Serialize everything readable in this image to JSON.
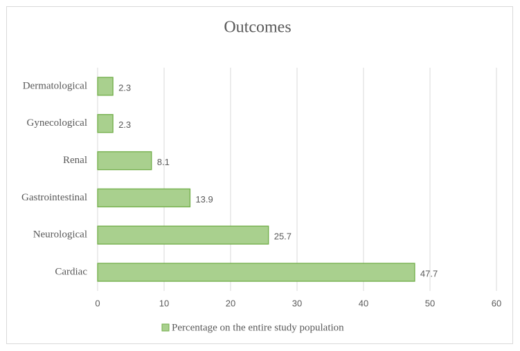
{
  "chart_data": {
    "type": "bar",
    "orientation": "horizontal",
    "title": "Outcomes",
    "categories": [
      "Cardiac",
      "Neurological",
      "Gastrointestinal",
      "Renal",
      "Gynecological",
      "Dermatological"
    ],
    "series": [
      {
        "name": "Percentage on the entire study population",
        "color": "#a9d08e",
        "values": [
          47.7,
          25.7,
          13.9,
          8.1,
          2.3,
          2.3
        ]
      }
    ],
    "xlim": [
      0,
      60
    ],
    "xticks": [
      0,
      10,
      20,
      30,
      40,
      50,
      60
    ],
    "grid": true,
    "legend": "bottom"
  }
}
